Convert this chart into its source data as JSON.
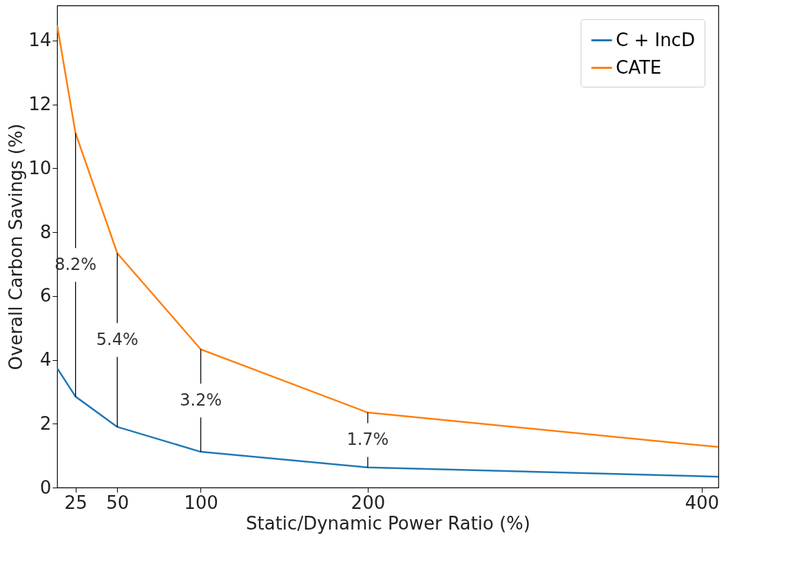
{
  "chart_data": {
    "type": "line",
    "xlabel": "Static/Dynamic Power Ratio (%)",
    "ylabel": "Overall Carbon Savings (%)",
    "x": [
      14,
      25,
      50,
      100,
      200,
      410
    ],
    "series": [
      {
        "name": "C + IncD",
        "color": "#1f77b4",
        "values": [
          3.74,
          2.85,
          1.9,
          1.12,
          0.63,
          0.34
        ]
      },
      {
        "name": "CATE",
        "color": "#ff7f0e",
        "values": [
          14.48,
          11.1,
          7.34,
          4.33,
          2.35,
          1.27
        ]
      }
    ],
    "xlim": [
      14,
      410
    ],
    "xticks": [
      25,
      50,
      100,
      200,
      400
    ],
    "ylim": [
      0,
      15.1
    ],
    "yticks": [
      0,
      2,
      4,
      6,
      8,
      10,
      12,
      14
    ],
    "annotations": [
      {
        "text": "8.2%",
        "x": 25,
        "y": 11.1
      },
      {
        "text": "5.4%",
        "x": 50,
        "y": 7.34
      },
      {
        "text": "3.2%",
        "x": 100,
        "y": 4.33
      },
      {
        "text": "1.7%",
        "x": 200,
        "y": 2.35
      }
    ],
    "grid": false,
    "legend": "top right",
    "line_style": "solid"
  }
}
